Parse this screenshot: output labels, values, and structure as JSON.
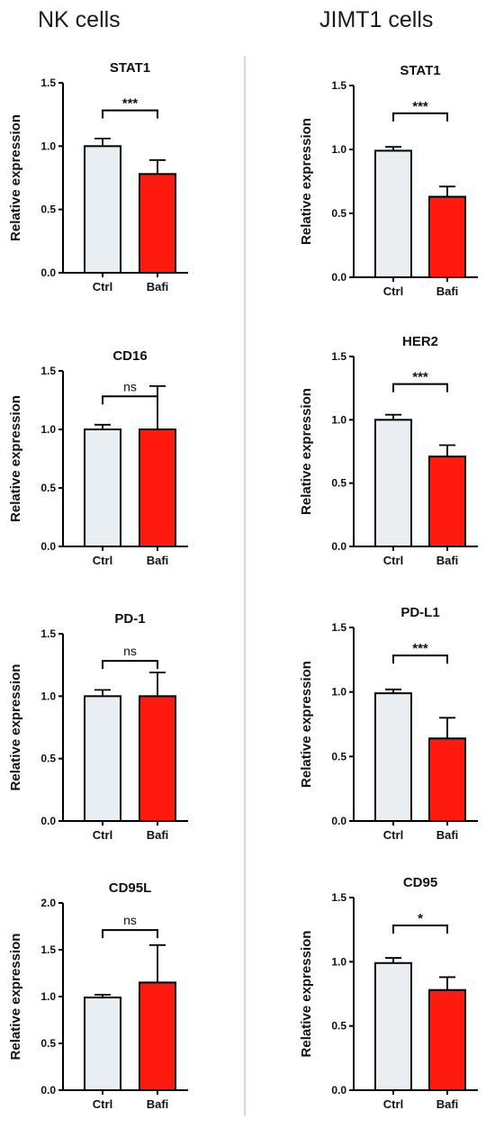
{
  "figure": {
    "left_title": "NK cells",
    "right_title": "JIMT1 cells"
  },
  "colors": {
    "ctrl_fill": "#E9EEF2",
    "bafi_fill": "#FF1A10",
    "bar_stroke": "#000000",
    "divider": "#B0B0B0"
  },
  "chart_data": [
    {
      "type": "bar",
      "column": "left",
      "row": 0,
      "title": "STAT1",
      "ylabel": "Relative expression",
      "ylim": [
        0,
        1.5
      ],
      "yticks": [
        "0.0",
        "0.5",
        "1.0",
        "1.5"
      ],
      "categories": [
        "Ctrl",
        "Bafi"
      ],
      "values": [
        1.0,
        0.78
      ],
      "errors": [
        0.06,
        0.11
      ],
      "significance": "***"
    },
    {
      "type": "bar",
      "column": "left",
      "row": 1,
      "title": "CD16",
      "ylabel": "Relative expression",
      "ylim": [
        0,
        1.5
      ],
      "yticks": [
        "0.0",
        "0.5",
        "1.0",
        "1.5"
      ],
      "categories": [
        "Ctrl",
        "Bafi"
      ],
      "values": [
        1.0,
        1.0
      ],
      "errors": [
        0.04,
        0.37
      ],
      "significance": "ns"
    },
    {
      "type": "bar",
      "column": "left",
      "row": 2,
      "title": "PD-1",
      "ylabel": "Relative expression",
      "ylim": [
        0,
        1.5
      ],
      "yticks": [
        "0.0",
        "0.5",
        "1.0",
        "1.5"
      ],
      "categories": [
        "Ctrl",
        "Bafi"
      ],
      "values": [
        1.0,
        1.0
      ],
      "errors": [
        0.05,
        0.19
      ],
      "significance": "ns"
    },
    {
      "type": "bar",
      "column": "left",
      "row": 3,
      "title": "CD95L",
      "ylabel": "Relative expression",
      "ylim": [
        0,
        2.0
      ],
      "yticks": [
        "0.0",
        "0.5",
        "1.0",
        "1.5",
        "2.0"
      ],
      "categories": [
        "Ctrl",
        "Bafi"
      ],
      "values": [
        0.99,
        1.15
      ],
      "errors": [
        0.03,
        0.4
      ],
      "significance": "ns"
    },
    {
      "type": "bar",
      "column": "right",
      "row": 0,
      "title": "STAT1",
      "ylabel": "Relative expression",
      "ylim": [
        0,
        1.5
      ],
      "yticks": [
        "0.0",
        "0.5",
        "1.0",
        "1.5"
      ],
      "categories": [
        "Ctrl",
        "Bafi"
      ],
      "values": [
        0.99,
        0.63
      ],
      "errors": [
        0.03,
        0.08
      ],
      "significance": "***"
    },
    {
      "type": "bar",
      "column": "right",
      "row": 1,
      "title": "HER2",
      "ylabel": "Relative expression",
      "ylim": [
        0,
        1.5
      ],
      "yticks": [
        "0.0",
        "0.5",
        "1.0",
        "1.5"
      ],
      "categories": [
        "Ctrl",
        "Bafi"
      ],
      "values": [
        1.0,
        0.71
      ],
      "errors": [
        0.04,
        0.09
      ],
      "significance": "***"
    },
    {
      "type": "bar",
      "column": "right",
      "row": 2,
      "title": "PD-L1",
      "ylabel": "Relative expression",
      "ylim": [
        0,
        1.5
      ],
      "yticks": [
        "0.0",
        "0.5",
        "1.0",
        "1.5"
      ],
      "categories": [
        "Ctrl",
        "Bafi"
      ],
      "values": [
        0.99,
        0.64
      ],
      "errors": [
        0.03,
        0.16
      ],
      "significance": "***"
    },
    {
      "type": "bar",
      "column": "right",
      "row": 3,
      "title": "CD95",
      "ylabel": "Relative expression",
      "ylim": [
        0,
        1.5
      ],
      "yticks": [
        "0.0",
        "0.5",
        "1.0",
        "1.5"
      ],
      "categories": [
        "Ctrl",
        "Bafi"
      ],
      "values": [
        0.99,
        0.78
      ],
      "errors": [
        0.04,
        0.1
      ],
      "significance": "*"
    }
  ]
}
